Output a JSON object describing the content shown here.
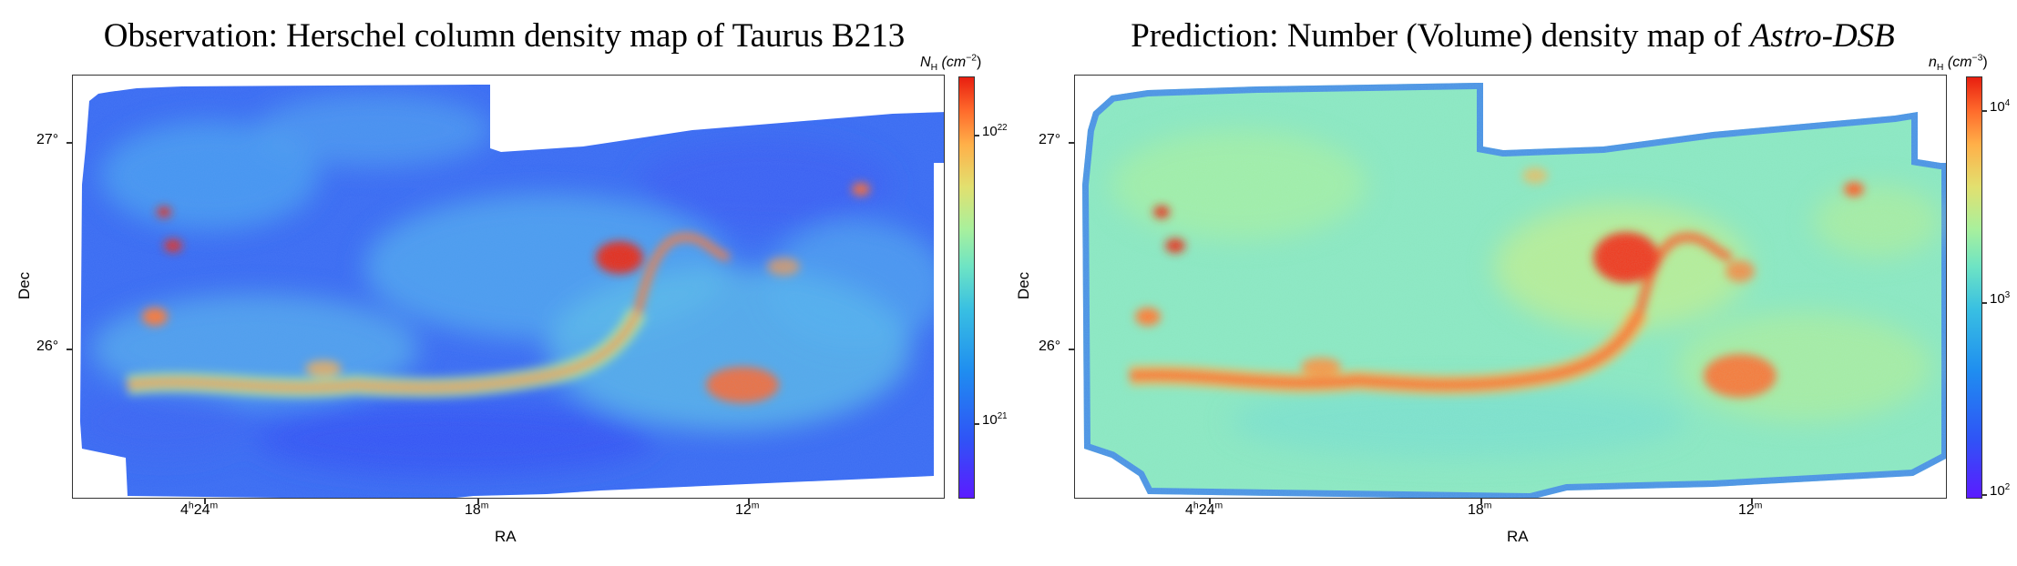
{
  "left": {
    "title": "Observation: Herschel column density map of Taurus B213",
    "colorbar_label": "N",
    "colorbar_sub": "H",
    "colorbar_unit": "(cm",
    "colorbar_unit_exp": "−2",
    "colorbar_unit_close": ")",
    "colorbar_ticks": [
      {
        "base": "10",
        "exp": "22",
        "value": "1e22"
      },
      {
        "base": "10",
        "exp": "21",
        "value": "1e21"
      }
    ],
    "ylabel": "Dec",
    "xlabel": "RA",
    "yticks": [
      "27°",
      "26°"
    ],
    "xticks": [
      {
        "main": "4",
        "sup1": "h",
        "mid": "24",
        "sup2": "m"
      },
      {
        "main": "18",
        "sup1": "",
        "mid": "",
        "sup2": "m"
      },
      {
        "main": "12",
        "sup1": "",
        "mid": "",
        "sup2": "m"
      }
    ]
  },
  "right": {
    "title_prefix": "Prediction: Number (Volume) density map of ",
    "title_italic": "Astro-DSB",
    "colorbar_label": "n",
    "colorbar_sub": "H",
    "colorbar_unit": "(cm",
    "colorbar_unit_exp": "−3",
    "colorbar_unit_close": ")",
    "colorbar_ticks": [
      {
        "base": "10",
        "exp": "4",
        "value": "1e4"
      },
      {
        "base": "10",
        "exp": "3",
        "value": "1e3"
      },
      {
        "base": "10",
        "exp": "2",
        "value": "1e2"
      }
    ],
    "ylabel": "Dec",
    "xlabel": "RA",
    "yticks": [
      "27°",
      "26°"
    ],
    "xticks": [
      {
        "main": "4",
        "sup1": "h",
        "mid": "24",
        "sup2": "m"
      },
      {
        "main": "18",
        "sup1": "",
        "mid": "",
        "sup2": "m"
      },
      {
        "main": "12",
        "sup1": "",
        "mid": "",
        "sup2": "m"
      }
    ]
  },
  "colors": {
    "low": "#5b1bff",
    "mid_low": "#2f6cf3",
    "mid": "#6ee4c4",
    "mid_high": "#e2e06f",
    "high": "#e81f10"
  }
}
